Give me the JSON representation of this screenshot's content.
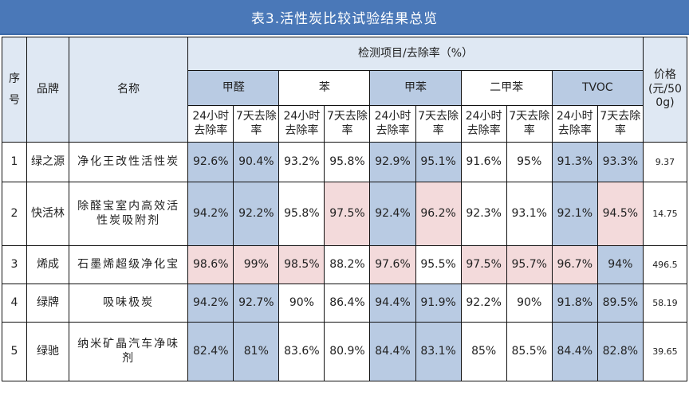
{
  "title": "表3.活性炭比较试验结果总览",
  "headers": {
    "seq": "序号",
    "brand": "品牌",
    "name": "名称",
    "group": "检测项目/去除率（%）",
    "price": "价格(元/500g)",
    "items": [
      "甲醛",
      "苯",
      "甲苯",
      "二甲苯",
      "TVOC"
    ],
    "sub24": "24小时去除率",
    "sub7d": "7天去除率"
  },
  "rows": [
    {
      "seq": "1",
      "brand": "绿之源",
      "name": "净化王改性活性炭",
      "values": [
        "92.6%",
        "90.4%",
        "93.2%",
        "95.8%",
        "92.9%",
        "95.1%",
        "91.6%",
        "95%",
        "91.3%",
        "93.3%"
      ],
      "fills": [
        "blue",
        "blue",
        "none",
        "none",
        "blue",
        "blue",
        "none",
        "none",
        "blue",
        "blue"
      ],
      "price": "9.37"
    },
    {
      "seq": "2",
      "brand": "快活林",
      "name": "除醛宝室内高效活性炭吸附剂",
      "values": [
        "94.2%",
        "92.2%",
        "95.8%",
        "97.5%",
        "92.4%",
        "96.2%",
        "92.3%",
        "93.1%",
        "92.1%",
        "94.5%"
      ],
      "fills": [
        "blue",
        "blue",
        "none",
        "pink",
        "blue",
        "pink",
        "none",
        "none",
        "blue",
        "pink"
      ],
      "price": "14.75"
    },
    {
      "seq": "3",
      "brand": "烯成",
      "name": "石墨烯超级净化宝",
      "values": [
        "98.6%",
        "99%",
        "98.5%",
        "88.2%",
        "97.6%",
        "95.5%",
        "97.5%",
        "95.7%",
        "96.7%",
        "94%"
      ],
      "fills": [
        "pink",
        "pink",
        "pink",
        "none",
        "pink",
        "none",
        "pink",
        "pink",
        "pink",
        "blue"
      ],
      "price": "496.5"
    },
    {
      "seq": "4",
      "brand": "绿牌",
      "name": "吸味极炭",
      "values": [
        "94.2%",
        "92.7%",
        "90%",
        "86.4%",
        "94.4%",
        "91.9%",
        "92.2%",
        "90%",
        "91.8%",
        "89.5%"
      ],
      "fills": [
        "blue",
        "blue",
        "none",
        "none",
        "blue",
        "blue",
        "none",
        "none",
        "blue",
        "blue"
      ],
      "price": "58.19"
    },
    {
      "seq": "5",
      "brand": "绿驰",
      "name": "纳米矿晶汽车净味剂",
      "values": [
        "82.4%",
        "81%",
        "83.6%",
        "80.9%",
        "84.4%",
        "83.1%",
        "85%",
        "85.5%",
        "84.4%",
        "82.8%"
      ],
      "fills": [
        "blue",
        "blue",
        "none",
        "none",
        "blue",
        "blue",
        "none",
        "none",
        "blue",
        "blue"
      ],
      "price": "39.65"
    }
  ],
  "colors": {
    "title_bg": "#4a78b8",
    "header_bg": "#dfe8f3",
    "blue_fill": "#b9cbe3",
    "pink_fill": "#f3dadb"
  }
}
